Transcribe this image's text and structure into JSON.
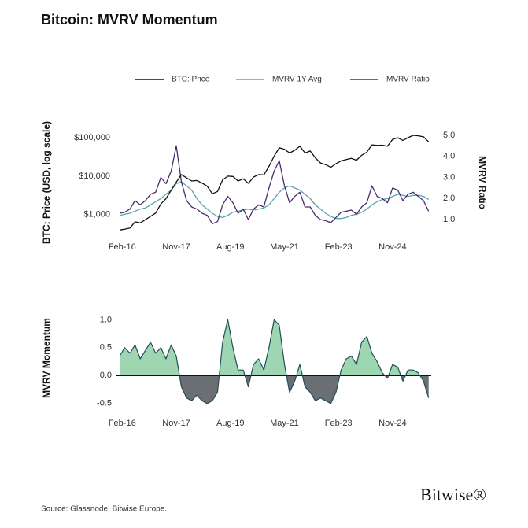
{
  "title": "Bitcoin: MVRV Momentum",
  "source": "Source: Glassnode, Bitwise Europe.",
  "logo": "Bitwise®",
  "chart_data": [
    {
      "type": "line",
      "ylabel": "BTC: Price (USD, log scale)",
      "y2label": "MVRV Ratio",
      "x": [
        "2016-01",
        "2016-03",
        "2016-05",
        "2016-07",
        "2016-09",
        "2016-11",
        "2017-01",
        "2017-03",
        "2017-05",
        "2017-07",
        "2017-09",
        "2017-11",
        "2018-01",
        "2018-03",
        "2018-05",
        "2018-07",
        "2018-09",
        "2018-11",
        "2019-01",
        "2019-03",
        "2019-05",
        "2019-07",
        "2019-09",
        "2019-11",
        "2020-01",
        "2020-03",
        "2020-05",
        "2020-07",
        "2020-09",
        "2020-11",
        "2021-01",
        "2021-03",
        "2021-05",
        "2021-07",
        "2021-09",
        "2021-11",
        "2022-01",
        "2022-03",
        "2022-05",
        "2022-07",
        "2022-09",
        "2022-11",
        "2023-01",
        "2023-03",
        "2023-05",
        "2023-07",
        "2023-09",
        "2023-11",
        "2024-01",
        "2024-03",
        "2024-05",
        "2024-07",
        "2024-09",
        "2024-11",
        "2025-01",
        "2025-03",
        "2025-05",
        "2025-07",
        "2025-09",
        "2025-11",
        "2026-01"
      ],
      "xlim": [
        "2016-01",
        "2026-02"
      ],
      "xticks": [
        {
          "value": "2016-02",
          "label": "Feb-16"
        },
        {
          "value": "2017-11",
          "label": "Nov-17"
        },
        {
          "value": "2019-08",
          "label": "Aug-19"
        },
        {
          "value": "2021-05",
          "label": "May-21"
        },
        {
          "value": "2023-02",
          "label": "Feb-23"
        },
        {
          "value": "2024-11",
          "label": "Nov-24"
        }
      ],
      "ylog": true,
      "ylim": [
        320,
        160000
      ],
      "yticks": [
        {
          "value": 1000,
          "label": "$1,000"
        },
        {
          "value": 10000,
          "label": "$10,000"
        },
        {
          "value": 100000,
          "label": "$100,000"
        }
      ],
      "y2lim": [
        0.33,
        5.26
      ],
      "y2ticks": [
        {
          "value": 1,
          "label": "1.0"
        },
        {
          "value": 2,
          "label": "2.0"
        },
        {
          "value": 3,
          "label": "3.0"
        },
        {
          "value": 4,
          "label": "4.0"
        },
        {
          "value": 5,
          "label": "5.0"
        }
      ],
      "series": [
        {
          "name": "BTC: Price",
          "color": "#111111",
          "values": [
            400,
            420,
            450,
            650,
            610,
            740,
            900,
            1100,
            1900,
            2600,
            4300,
            7000,
            11000,
            9000,
            7500,
            7700,
            6600,
            5500,
            3500,
            4000,
            8000,
            10000,
            9800,
            7500,
            8500,
            6500,
            9500,
            11000,
            10800,
            18000,
            33000,
            55000,
            50000,
            40000,
            47000,
            60000,
            40000,
            45000,
            30000,
            22000,
            20000,
            17000,
            21000,
            25000,
            27000,
            29000,
            26000,
            35000,
            42000,
            65000,
            63000,
            64000,
            60000,
            90000,
            100000,
            85000,
            100000,
            115000,
            112000,
            105000,
            78000
          ]
        },
        {
          "name": "MVRV 1Y Avg",
          "color": "#5aa5a8",
          "axis": "y2",
          "values": [
            1.2,
            1.25,
            1.3,
            1.4,
            1.5,
            1.55,
            1.7,
            1.85,
            2.0,
            2.2,
            2.4,
            2.7,
            2.8,
            2.6,
            2.4,
            2.0,
            1.7,
            1.5,
            1.3,
            1.15,
            1.1,
            1.2,
            1.35,
            1.4,
            1.45,
            1.5,
            1.45,
            1.5,
            1.55,
            1.7,
            2.0,
            2.3,
            2.5,
            2.6,
            2.5,
            2.4,
            2.2,
            2.0,
            1.7,
            1.5,
            1.3,
            1.15,
            1.05,
            1.05,
            1.1,
            1.2,
            1.25,
            1.35,
            1.5,
            1.7,
            1.85,
            1.95,
            2.0,
            2.1,
            2.2,
            2.15,
            2.1,
            2.15,
            2.15,
            2.1,
            1.95
          ]
        },
        {
          "name": "MVRV Ratio",
          "color": "#4b2a6b",
          "axis": "y2",
          "values": [
            1.3,
            1.35,
            1.5,
            1.9,
            1.7,
            1.9,
            2.2,
            2.3,
            3.0,
            2.7,
            3.3,
            4.5,
            2.8,
            1.9,
            1.6,
            1.5,
            1.3,
            1.2,
            0.8,
            0.9,
            1.7,
            2.1,
            1.8,
            1.3,
            1.5,
            1.0,
            1.5,
            1.7,
            1.6,
            2.5,
            3.3,
            3.8,
            2.6,
            1.8,
            2.1,
            2.3,
            1.6,
            1.6,
            1.2,
            1.0,
            0.95,
            0.85,
            1.1,
            1.35,
            1.4,
            1.45,
            1.25,
            1.6,
            1.8,
            2.6,
            2.1,
            2.0,
            1.8,
            2.5,
            2.4,
            1.9,
            2.2,
            2.3,
            2.1,
            1.9,
            1.4
          ]
        }
      ]
    },
    {
      "type": "area",
      "ylabel": "MVRV Momentum",
      "x": [
        "2016-01",
        "2016-03",
        "2016-05",
        "2016-07",
        "2016-09",
        "2016-11",
        "2017-01",
        "2017-03",
        "2017-05",
        "2017-07",
        "2017-09",
        "2017-11",
        "2018-01",
        "2018-03",
        "2018-05",
        "2018-07",
        "2018-09",
        "2018-11",
        "2019-01",
        "2019-03",
        "2019-05",
        "2019-07",
        "2019-09",
        "2019-11",
        "2020-01",
        "2020-03",
        "2020-05",
        "2020-07",
        "2020-09",
        "2020-11",
        "2021-01",
        "2021-03",
        "2021-05",
        "2021-07",
        "2021-09",
        "2021-11",
        "2022-01",
        "2022-03",
        "2022-05",
        "2022-07",
        "2022-09",
        "2022-11",
        "2023-01",
        "2023-03",
        "2023-05",
        "2023-07",
        "2023-09",
        "2023-11",
        "2024-01",
        "2024-03",
        "2024-05",
        "2024-07",
        "2024-09",
        "2024-11",
        "2025-01",
        "2025-03",
        "2025-05",
        "2025-07",
        "2025-09",
        "2025-11",
        "2026-01"
      ],
      "xlim": [
        "2016-01",
        "2026-02"
      ],
      "xticks": [
        {
          "value": "2016-02",
          "label": "Feb-16"
        },
        {
          "value": "2017-11",
          "label": "Nov-17"
        },
        {
          "value": "2019-08",
          "label": "Aug-19"
        },
        {
          "value": "2021-05",
          "label": "May-21"
        },
        {
          "value": "2023-02",
          "label": "Feb-23"
        },
        {
          "value": "2024-11",
          "label": "Nov-24"
        }
      ],
      "ylim": [
        -0.63,
        1.16
      ],
      "yticks": [
        {
          "value": -0.5,
          "label": "-0.5"
        },
        {
          "value": 0,
          "label": "0.0"
        },
        {
          "value": 0.5,
          "label": "0.5"
        },
        {
          "value": 1,
          "label": "1.0"
        }
      ],
      "color": "#1f4e5a",
      "positive_color": "#9fd6b2",
      "negative_color": "#6b6e72",
      "values": [
        0.35,
        0.5,
        0.4,
        0.55,
        0.3,
        0.45,
        0.6,
        0.4,
        0.5,
        0.3,
        0.55,
        0.35,
        -0.2,
        -0.4,
        -0.45,
        -0.35,
        -0.45,
        -0.5,
        -0.45,
        -0.3,
        0.6,
        1.0,
        0.5,
        0.1,
        0.1,
        -0.2,
        0.2,
        0.3,
        0.1,
        0.5,
        1.0,
        0.9,
        0.2,
        -0.3,
        -0.1,
        0.2,
        -0.2,
        -0.3,
        -0.45,
        -0.4,
        -0.45,
        -0.5,
        -0.3,
        0.1,
        0.3,
        0.35,
        0.2,
        0.6,
        0.7,
        0.4,
        0.25,
        0.05,
        -0.05,
        0.2,
        0.15,
        -0.1,
        0.1,
        0.1,
        0.05,
        -0.1,
        -0.4
      ]
    }
  ]
}
